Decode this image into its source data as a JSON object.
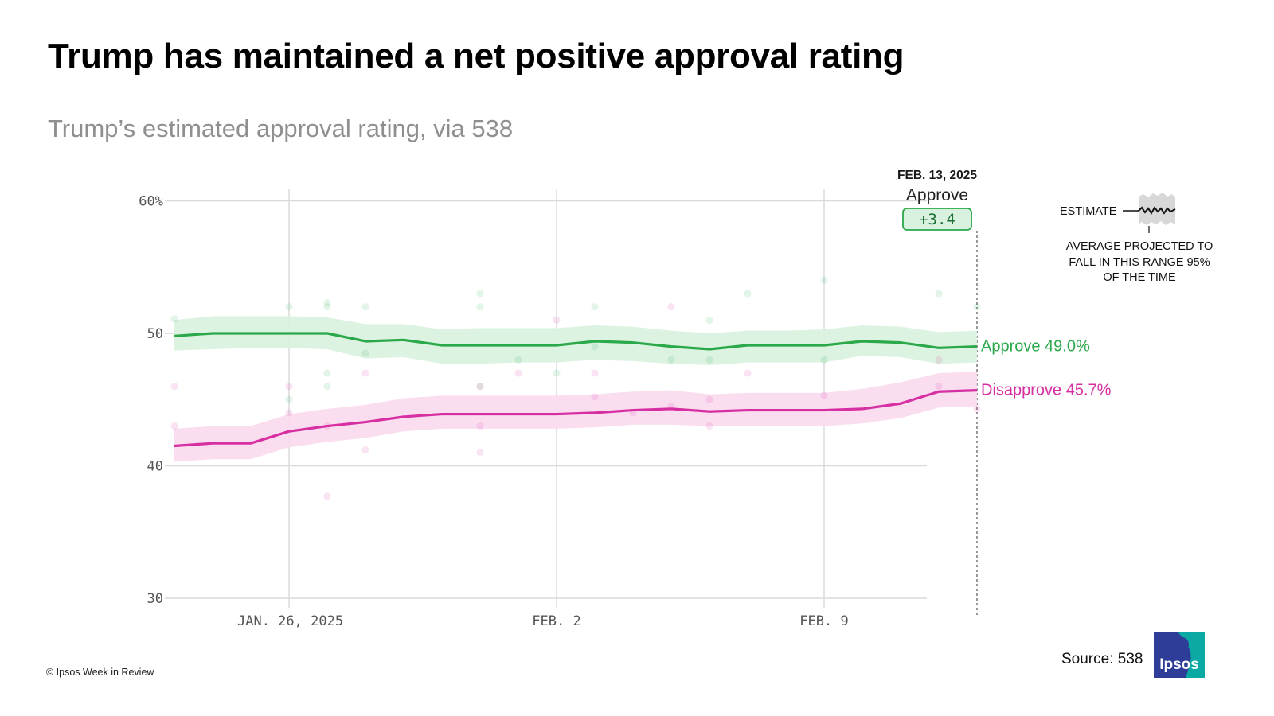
{
  "title": "Trump has maintained a net positive approval rating",
  "subtitle": "Trump’s estimated approval rating, via 538",
  "colors": {
    "approve": "#2aa84a",
    "approve_band": "#d9f2df",
    "disapprove": "#d62fa2",
    "disapprove_band": "#fbd9ee",
    "grid": "#d9d9d9",
    "logo_blue": "#2e3d98",
    "logo_teal": "#0aa9a3"
  },
  "chart_data": {
    "type": "line",
    "x_start": "2025-01-23",
    "x": [
      "2025-01-23",
      "2025-01-24",
      "2025-01-25",
      "2025-01-26",
      "2025-01-27",
      "2025-01-28",
      "2025-01-29",
      "2025-01-30",
      "2025-01-31",
      "2025-02-01",
      "2025-02-02",
      "2025-02-03",
      "2025-02-04",
      "2025-02-05",
      "2025-02-06",
      "2025-02-07",
      "2025-02-08",
      "2025-02-09",
      "2025-02-10",
      "2025-02-11",
      "2025-02-12",
      "2025-02-13"
    ],
    "series": [
      {
        "name": "Approve",
        "values": [
          49.8,
          50.0,
          50.0,
          50.0,
          50.0,
          49.4,
          49.5,
          49.1,
          49.1,
          49.1,
          49.1,
          49.4,
          49.3,
          49.0,
          48.8,
          49.1,
          49.1,
          49.1,
          49.4,
          49.3,
          48.9,
          49.0
        ],
        "lower": [
          48.7,
          48.8,
          48.9,
          48.9,
          48.8,
          48.1,
          48.2,
          47.7,
          47.7,
          47.8,
          47.8,
          48.0,
          47.9,
          47.7,
          47.6,
          47.8,
          47.8,
          47.8,
          48.3,
          48.2,
          47.7,
          47.8
        ],
        "upper": [
          51.0,
          51.3,
          51.3,
          51.3,
          51.2,
          50.7,
          50.7,
          50.3,
          50.4,
          50.4,
          50.4,
          50.6,
          50.5,
          50.2,
          50.0,
          50.2,
          50.2,
          50.3,
          50.6,
          50.5,
          50.1,
          50.2
        ],
        "polls": [
          [
            0,
            51.1
          ],
          [
            3,
            52.0
          ],
          [
            3,
            45.0
          ],
          [
            4,
            52.3
          ],
          [
            4,
            52.0
          ],
          [
            4,
            47.0
          ],
          [
            4,
            46.0
          ],
          [
            5,
            52.0
          ],
          [
            5,
            48.5
          ],
          [
            8,
            53.0
          ],
          [
            8,
            52.0
          ],
          [
            8,
            46.0
          ],
          [
            9,
            48.0
          ],
          [
            10,
            47.0
          ],
          [
            11,
            52.0
          ],
          [
            11,
            49.0
          ],
          [
            13,
            48.0
          ],
          [
            14,
            51.0
          ],
          [
            14,
            48.0
          ],
          [
            15,
            53.0
          ],
          [
            17,
            54.0
          ],
          [
            17,
            48.0
          ],
          [
            20,
            53.0
          ],
          [
            21,
            52.0
          ]
        ]
      },
      {
        "name": "Disapprove",
        "values": [
          41.5,
          41.7,
          41.7,
          42.6,
          43.0,
          43.3,
          43.7,
          43.9,
          43.9,
          43.9,
          43.9,
          44.0,
          44.2,
          44.3,
          44.1,
          44.2,
          44.2,
          44.2,
          44.3,
          44.7,
          45.6,
          45.7
        ],
        "lower": [
          40.3,
          40.5,
          40.5,
          41.4,
          41.8,
          42.1,
          42.6,
          42.8,
          42.8,
          42.8,
          42.8,
          42.9,
          43.1,
          43.1,
          43.0,
          43.0,
          43.0,
          43.0,
          43.2,
          43.6,
          44.4,
          44.5
        ],
        "upper": [
          42.8,
          43.0,
          43.0,
          43.9,
          44.3,
          44.6,
          45.1,
          45.3,
          45.3,
          45.3,
          45.3,
          45.4,
          45.6,
          45.7,
          45.4,
          45.5,
          45.5,
          45.5,
          45.8,
          46.3,
          47.0,
          47.1
        ],
        "polls": [
          [
            0,
            46.0
          ],
          [
            0,
            43.0
          ],
          [
            3,
            46.0
          ],
          [
            3,
            44.0
          ],
          [
            4,
            37.7
          ],
          [
            4,
            43.0
          ],
          [
            5,
            47.0
          ],
          [
            5,
            41.2
          ],
          [
            8,
            46.0
          ],
          [
            8,
            43.0
          ],
          [
            8,
            41.0
          ],
          [
            9,
            47.0
          ],
          [
            10,
            51.0
          ],
          [
            11,
            47.0
          ],
          [
            11,
            45.2
          ],
          [
            12,
            44.0
          ],
          [
            13,
            52.0
          ],
          [
            13,
            44.5
          ],
          [
            14,
            45.0
          ],
          [
            14,
            43.0
          ],
          [
            15,
            47.0
          ],
          [
            17,
            45.3
          ],
          [
            20,
            48.0
          ],
          [
            20,
            46.0
          ],
          [
            21,
            44.3
          ]
        ]
      }
    ],
    "ylim": [
      30,
      60
    ],
    "y_ticks": [
      "60%",
      "50",
      "40",
      "30"
    ],
    "y_tick_values": [
      60,
      50,
      40,
      30
    ],
    "x_tick_labels": [
      "JAN. 26, 2025",
      "FEB. 2",
      "FEB. 9"
    ],
    "x_tick_dates": [
      "2025-01-26",
      "2025-02-02",
      "2025-02-09"
    ],
    "grid": true,
    "marker": {
      "date_label": "FEB. 13, 2025",
      "series_label": "Approve",
      "net_label": "+3.4"
    },
    "end_labels": {
      "approve": "Approve 49.0%",
      "disapprove": "Disapprove 45.7%"
    },
    "legend": {
      "estimate_label": "ESTIMATE",
      "range_label_lines": [
        "AVERAGE PROJECTED TO",
        "FALL IN THIS RANGE 95%",
        "OF THE TIME"
      ]
    }
  },
  "footer": {
    "copyright": "© Ipsos Week in Review",
    "source": "Source: 538",
    "logo_text": "Ipsos"
  }
}
